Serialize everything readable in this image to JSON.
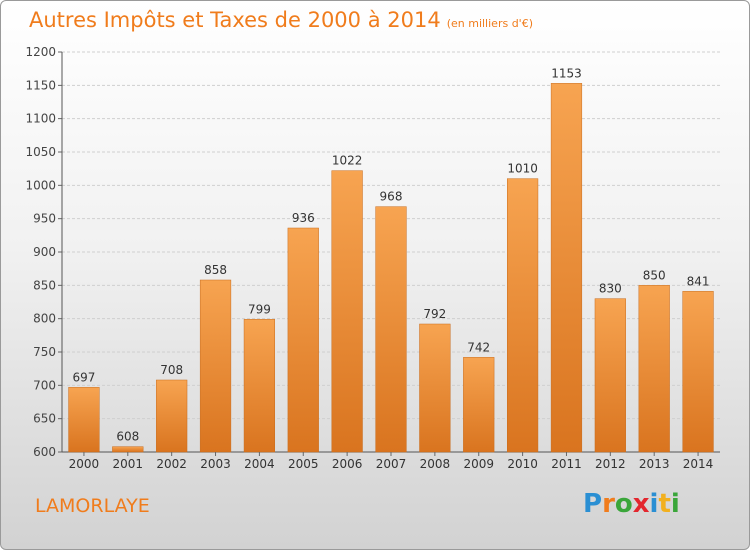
{
  "chart_data": {
    "type": "bar",
    "title": "Autres Impôts et Taxes de 2000 à 2014",
    "unit": "(en milliers d'€)",
    "categories": [
      "2000",
      "2001",
      "2002",
      "2003",
      "2004",
      "2005",
      "2006",
      "2007",
      "2008",
      "2009",
      "2010",
      "2011",
      "2012",
      "2013",
      "2014"
    ],
    "values": [
      697,
      608,
      708,
      858,
      799,
      936,
      1022,
      968,
      792,
      742,
      1010,
      1153,
      830,
      850,
      841
    ],
    "ylim": [
      600,
      1200
    ],
    "yticks": [
      600,
      650,
      700,
      750,
      800,
      850,
      900,
      950,
      1000,
      1050,
      1100,
      1150,
      1200
    ],
    "grid": true,
    "bar_color": "#f49b4a"
  },
  "footer": {
    "city": "LAMORLAYE",
    "logo": "Proxiti"
  },
  "logo_colors": [
    "#2a8fd3",
    "#f07c1c",
    "#3aa63a",
    "#e3262e",
    "#2a8fd3",
    "#f2b01e",
    "#3aa63a"
  ]
}
